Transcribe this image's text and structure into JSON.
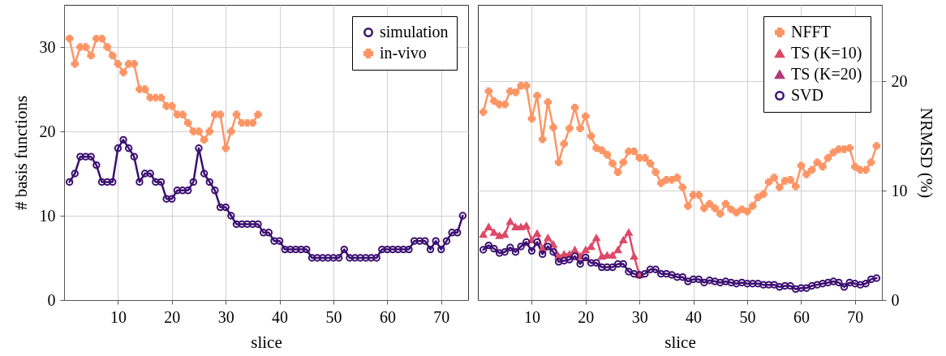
{
  "chart_data": [
    {
      "type": "line",
      "xlabel": "slice",
      "ylabel": "# basis functions",
      "xlim": [
        0,
        75
      ],
      "xticks": [
        10,
        20,
        30,
        40,
        50,
        60,
        70
      ],
      "ylim": [
        0,
        35
      ],
      "yticks": [
        0,
        10,
        20,
        30
      ],
      "grid": true,
      "legend": "top right",
      "line_style": "solid",
      "x": [
        1,
        2,
        3,
        4,
        5,
        6,
        7,
        8,
        9,
        10,
        11,
        12,
        13,
        14,
        15,
        16,
        17,
        18,
        19,
        20,
        21,
        22,
        23,
        24,
        25,
        26,
        27,
        28,
        29,
        30,
        31,
        32,
        33,
        34,
        35,
        36,
        37,
        38,
        39,
        40,
        41,
        42,
        43,
        44,
        45,
        46,
        47,
        48,
        49,
        50,
        51,
        52,
        53,
        54,
        55,
        56,
        57,
        58,
        59,
        60,
        61,
        62,
        63,
        64,
        65,
        66,
        67,
        68,
        69,
        70,
        71,
        72,
        73,
        74
      ],
      "series": [
        {
          "name": "simulation",
          "color": "#3b0f70",
          "marker": "circle",
          "values": [
            14,
            15,
            17,
            17,
            17,
            16,
            14,
            14,
            14,
            18,
            19,
            18,
            17,
            14,
            15,
            15,
            14,
            14,
            12,
            12,
            13,
            13,
            13,
            14,
            18,
            15,
            14,
            13,
            11,
            11,
            10,
            9,
            9,
            9,
            9,
            9,
            8,
            8,
            7,
            7,
            6,
            6,
            6,
            6,
            6,
            5,
            5,
            5,
            5,
            5,
            5,
            6,
            5,
            5,
            5,
            5,
            5,
            5,
            6,
            6,
            6,
            6,
            6,
            6,
            7,
            7,
            7,
            6,
            7,
            6,
            7,
            8,
            8,
            10
          ]
        },
        {
          "name": "in-vivo",
          "color": "#fc9565",
          "marker": "cross",
          "x": [
            1,
            2,
            3,
            4,
            5,
            6,
            7,
            8,
            9,
            10,
            11,
            12,
            13,
            14,
            15,
            16,
            17,
            18,
            19,
            20,
            21,
            22,
            23,
            24,
            25,
            26,
            27,
            28,
            29,
            30,
            31,
            32,
            33,
            34,
            35,
            36
          ],
          "values": [
            31,
            28,
            30,
            30,
            29,
            31,
            31,
            30,
            29,
            28,
            27,
            28,
            28,
            25,
            25,
            24,
            24,
            24,
            23,
            23,
            22,
            22,
            21,
            20,
            20,
            19,
            20,
            22,
            22,
            18,
            20,
            22,
            21,
            21,
            21,
            22
          ]
        }
      ]
    },
    {
      "type": "line",
      "xlabel": "slice",
      "y2label": "NRMSD (%)",
      "xlim": [
        0,
        75
      ],
      "xticks": [
        10,
        20,
        30,
        40,
        50,
        60,
        70
      ],
      "y2lim": [
        0,
        27
      ],
      "y2ticks": [
        0,
        10,
        20
      ],
      "grid": true,
      "legend": "top right",
      "line_style": "solid",
      "x": [
        1,
        2,
        3,
        4,
        5,
        6,
        7,
        8,
        9,
        10,
        11,
        12,
        13,
        14,
        15,
        16,
        17,
        18,
        19,
        20,
        21,
        22,
        23,
        24,
        25,
        26,
        27,
        28,
        29,
        30,
        31,
        32,
        33,
        34,
        35,
        36,
        37,
        38,
        39,
        40,
        41,
        42,
        43,
        44,
        45,
        46,
        47,
        48,
        49,
        50,
        51,
        52,
        53,
        54,
        55,
        56,
        57,
        58,
        59,
        60,
        61,
        62,
        63,
        64,
        65,
        66,
        67,
        68,
        69,
        70,
        71,
        72,
        73,
        74
      ],
      "series": [
        {
          "name": "NFFT",
          "color": "#fc9565",
          "marker": "cross",
          "axis": "y2",
          "values": [
            17.2,
            19.1,
            18.2,
            17.9,
            17.9,
            19.1,
            19.0,
            19.6,
            19.6,
            16.6,
            18.7,
            14.7,
            18.1,
            15.8,
            12.6,
            14.3,
            15.7,
            17.6,
            15.7,
            16.8,
            15.0,
            13.9,
            13.7,
            13.3,
            12.5,
            11.7,
            12.6,
            13.6,
            13.6,
            13.0,
            13.0,
            12.5,
            11.7,
            10.7,
            11.0,
            11.0,
            11.2,
            10.3,
            8.6,
            9.6,
            9.6,
            8.4,
            8.8,
            8.4,
            7.9,
            8.8,
            8.3,
            8.0,
            8.3,
            8.1,
            8.6,
            9.4,
            9.7,
            10.8,
            11.2,
            10.3,
            10.9,
            11.0,
            10.4,
            12.3,
            11.5,
            11.9,
            12.6,
            12.2,
            13.0,
            13.5,
            13.8,
            13.8,
            13.9,
            12.2,
            11.9,
            11.9,
            12.6,
            14.1
          ]
        },
        {
          "name": "TS (K=10)",
          "color": "#de4968",
          "marker": "triangle",
          "axis": "y2",
          "x": [
            1,
            2,
            3,
            4,
            5,
            6,
            7,
            8,
            9,
            10,
            11,
            12,
            13,
            14,
            15,
            16,
            17,
            18,
            19,
            20,
            21,
            22,
            23,
            24,
            25,
            26,
            27,
            28,
            29,
            30
          ],
          "values": [
            6.0,
            6.7,
            6.2,
            5.9,
            6.0,
            7.2,
            6.7,
            6.7,
            6.8,
            5.5,
            6.1,
            4.7,
            5.7,
            5.1,
            4.0,
            4.2,
            4.2,
            4.6,
            4.0,
            4.6,
            4.9,
            5.7,
            4.0,
            4.1,
            4.1,
            4.6,
            5.5,
            6.2,
            4.0,
            2.3
          ]
        },
        {
          "name": "TS (K=20)",
          "color": "#b5367a",
          "marker": "triangle",
          "axis": "y2",
          "values": [
            null,
            null,
            null,
            null,
            null,
            null,
            null,
            null,
            null,
            null,
            null,
            null,
            null,
            null,
            null,
            null,
            null,
            null,
            null,
            null,
            null,
            null,
            null,
            null,
            null,
            null,
            null,
            null,
            null,
            null,
            null,
            null,
            null,
            null,
            null,
            null,
            null,
            null,
            null,
            null,
            null,
            null,
            null,
            null,
            null,
            null,
            null,
            null,
            null,
            null,
            null,
            null,
            null,
            null,
            null,
            null,
            null,
            null,
            null,
            null,
            null,
            null,
            null,
            null,
            null,
            null,
            null,
            null,
            null,
            null,
            null,
            null,
            null,
            null
          ]
        },
        {
          "name": "SVD",
          "color": "#3b0f70",
          "marker": "circle",
          "axis": "y2",
          "values": [
            4.6,
            5.0,
            4.7,
            4.3,
            4.4,
            4.8,
            4.4,
            4.9,
            5.3,
            4.5,
            5.3,
            4.2,
            4.9,
            4.4,
            3.5,
            3.6,
            3.7,
            4.0,
            3.3,
            3.9,
            3.4,
            3.4,
            3.0,
            3.0,
            3.0,
            3.3,
            3.3,
            2.6,
            2.4,
            2.3,
            2.4,
            2.8,
            2.8,
            2.4,
            2.4,
            2.3,
            2.1,
            2.1,
            1.7,
            1.9,
            1.9,
            1.6,
            1.8,
            1.7,
            1.6,
            1.7,
            1.6,
            1.5,
            1.6,
            1.5,
            1.5,
            1.5,
            1.4,
            1.4,
            1.4,
            1.2,
            1.3,
            1.3,
            1.0,
            1.1,
            1.1,
            1.3,
            1.4,
            1.5,
            1.6,
            1.7,
            1.6,
            1.2,
            1.6,
            1.5,
            1.4,
            1.5,
            1.9,
            2.0
          ]
        }
      ]
    }
  ]
}
